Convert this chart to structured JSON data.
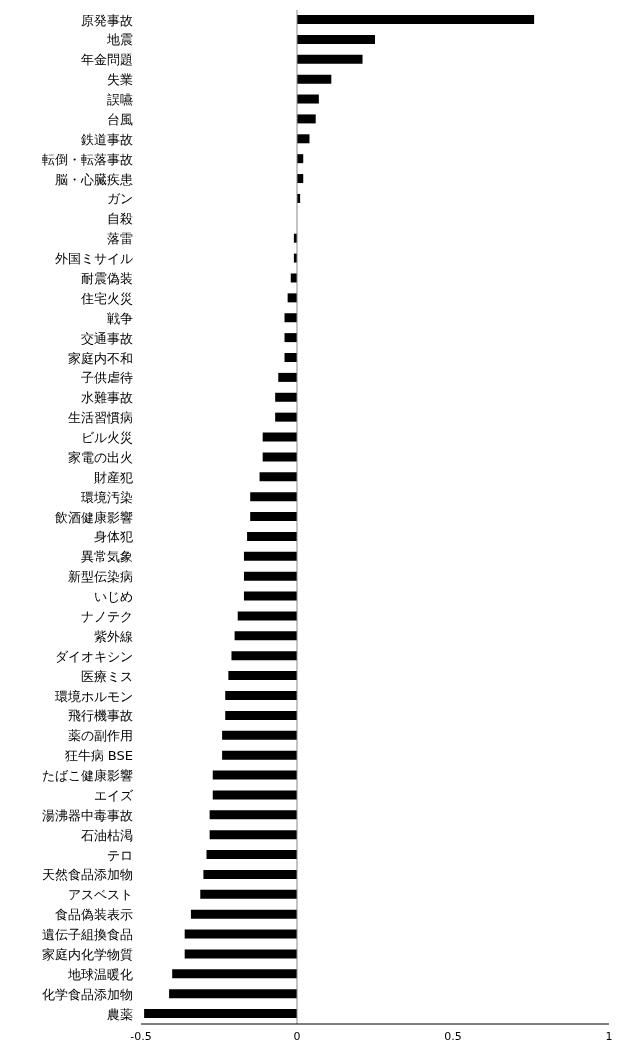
{
  "chart_data": {
    "type": "bar",
    "orientation": "horizontal",
    "categories": [
      "原発事故",
      "地震",
      "年金問題",
      "失業",
      "誤嚥",
      "台風",
      "鉄道事故",
      "転倒・転落事故",
      "脳・心臓疾患",
      "ガン",
      "自殺",
      "落雷",
      "外国ミサイル",
      "耐震偽装",
      "住宅火災",
      "戦争",
      "交通事故",
      "家庭内不和",
      "子供虐待",
      "水難事故",
      "生活習慣病",
      "ビル火災",
      "家電の出火",
      "財産犯",
      "環境汚染",
      "飲酒健康影響",
      "身体犯",
      "異常気象",
      "新型伝染病",
      "いじめ",
      "ナノテク",
      "紫外線",
      "ダイオキシン",
      "医療ミス",
      "環境ホルモン",
      "飛行機事故",
      "薬の副作用",
      "狂牛病 BSE",
      "たばこ健康影響",
      "エイズ",
      "湯沸器中毒事故",
      "石油枯渇",
      "テロ",
      "天然食品添加物",
      "アスベスト",
      "食品偽装表示",
      "遺伝子組換食品",
      "家庭内化学物質",
      "地球温暖化",
      "化学食品添加物",
      "農薬"
    ],
    "values": [
      0.76,
      0.25,
      0.21,
      0.11,
      0.07,
      0.06,
      0.04,
      0.02,
      0.02,
      0.01,
      0,
      -0.01,
      -0.01,
      -0.02,
      -0.03,
      -0.04,
      -0.04,
      -0.04,
      -0.06,
      -0.07,
      -0.07,
      -0.11,
      -0.11,
      -0.12,
      -0.15,
      -0.15,
      -0.16,
      -0.17,
      -0.17,
      -0.17,
      -0.19,
      -0.2,
      -0.21,
      -0.22,
      -0.23,
      -0.23,
      -0.24,
      -0.24,
      -0.27,
      -0.27,
      -0.28,
      -0.28,
      -0.29,
      -0.3,
      -0.31,
      -0.34,
      -0.36,
      -0.36,
      -0.4,
      -0.41,
      -0.49
    ],
    "color": "#000000",
    "xlim": [
      -0.5,
      1
    ],
    "xticks": [
      -0.5,
      0,
      0.5,
      1
    ]
  }
}
